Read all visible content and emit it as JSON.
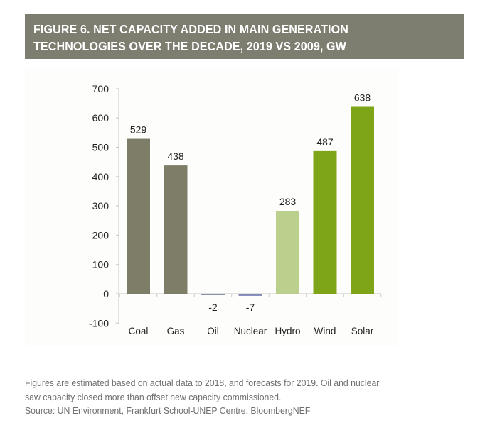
{
  "header": {
    "title_line1": "FIGURE 6. NET CAPACITY ADDED IN MAIN GENERATION",
    "title_line2": "TECHNOLOGIES OVER THE DECADE, 2019 VS 2009, GW"
  },
  "chart_data": {
    "type": "bar",
    "title": "FIGURE 6. NET CAPACITY ADDED IN MAIN GENERATION TECHNOLOGIES OVER THE DECADE, 2019 VS 2009, GW",
    "xlabel": "",
    "ylabel": "",
    "categories": [
      "Coal",
      "Gas",
      "Oil",
      "Nuclear",
      "Hydro",
      "Wind",
      "Solar"
    ],
    "values": [
      529,
      438,
      -2,
      -7,
      283,
      487,
      638
    ],
    "data_labels": [
      "529",
      "438",
      "-2",
      "-7",
      "283",
      "487",
      "638"
    ],
    "colors": [
      "#7e7e68",
      "#7e7e68",
      "#8a8fb0",
      "#7f86b6",
      "#bcd08e",
      "#7ea418",
      "#7ea418"
    ],
    "ylim": [
      -100,
      700
    ],
    "yticks": [
      -100,
      0,
      100,
      200,
      300,
      400,
      500,
      600,
      700
    ],
    "ytick_labels": [
      "-100",
      "0",
      "100",
      "200",
      "300",
      "400",
      "500",
      "600",
      "700"
    ],
    "grid": false,
    "legend": "none"
  },
  "footer": {
    "note_line1": "Figures are estimated based on actual data to 2018, and forecasts for 2019. Oil and nuclear",
    "note_line2": "saw capacity closed more than offset new capacity commissioned.",
    "source": "Source: UN Environment, Frankfurt School-UNEP Centre, BloombergNEF"
  },
  "colors": {
    "banner": "#7d7d70",
    "axis": "#c8c8c8",
    "text": "#222222",
    "footer_text": "#6f6f6f"
  }
}
